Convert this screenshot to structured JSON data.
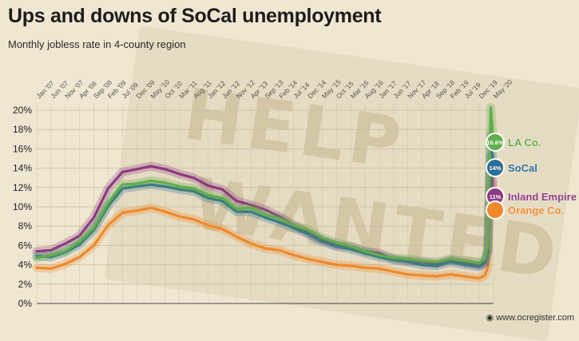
{
  "header": {
    "title": "Ups and downs of SoCal unemployment",
    "subtitle": "Monthly jobless rate in 4-county region"
  },
  "footer": {
    "credit": "www.ocregister.com"
  },
  "background": {
    "sign_top": "HELP",
    "sign_bottom": "WANTED"
  },
  "chart_data": {
    "type": "line",
    "title": "Ups and downs of SoCal unemployment",
    "subtitle": "Monthly jobless rate in 4-county region",
    "x_start": "2007-01",
    "x_end": "2020-05",
    "x_ticks": [
      "Jan '07",
      "Jun '07",
      "Nov '07",
      "Apr '08",
      "Sep '08",
      "Feb '09",
      "Jul '09",
      "Dec '09",
      "May '10",
      "Oct '10",
      "Mar '11",
      "Aug '11",
      "Jan '12",
      "Jun '12",
      "Nov '12",
      "Apr '13",
      "Sep '13",
      "Feb '14",
      "Jul '14",
      "Dec '14",
      "May '15",
      "Oct '15",
      "Mar '16",
      "Aug '16",
      "Jan '17",
      "Jun '17",
      "Nov '17",
      "Apr '18",
      "Sep '18",
      "Feb '19",
      "Jul '19",
      "Dec '19",
      "May '20"
    ],
    "y_ticks": [
      "0%",
      "2%",
      "4%",
      "6%",
      "8%",
      "10%",
      "12%",
      "14%",
      "16%",
      "18%",
      "20%"
    ],
    "ylim": [
      0,
      20
    ],
    "grid": true,
    "series": [
      {
        "name": "LA Co.",
        "color": "#62ad4c",
        "end_label": "16.6%",
        "points": [
          [
            "2007-01",
            4.7
          ],
          [
            "2007-06",
            5.0
          ],
          [
            "2007-11",
            5.4
          ],
          [
            "2008-04",
            6.4
          ],
          [
            "2008-09",
            7.8
          ],
          [
            "2009-02",
            10.4
          ],
          [
            "2009-07",
            12.3
          ],
          [
            "2009-12",
            12.4
          ],
          [
            "2010-05",
            12.7
          ],
          [
            "2010-10",
            12.5
          ],
          [
            "2011-03",
            12.1
          ],
          [
            "2011-08",
            11.9
          ],
          [
            "2012-01",
            11.2
          ],
          [
            "2012-06",
            10.9
          ],
          [
            "2012-11",
            9.8
          ],
          [
            "2013-04",
            9.9
          ],
          [
            "2013-09",
            9.2
          ],
          [
            "2014-02",
            8.8
          ],
          [
            "2014-07",
            8.1
          ],
          [
            "2014-12",
            7.6
          ],
          [
            "2015-05",
            6.8
          ],
          [
            "2015-10",
            6.3
          ],
          [
            "2016-03",
            5.9
          ],
          [
            "2016-08",
            5.4
          ],
          [
            "2017-01",
            5.0
          ],
          [
            "2017-06",
            4.7
          ],
          [
            "2017-11",
            4.6
          ],
          [
            "2018-04",
            4.4
          ],
          [
            "2018-09",
            4.3
          ],
          [
            "2019-02",
            4.6
          ],
          [
            "2019-07",
            4.4
          ],
          [
            "2019-12",
            4.2
          ],
          [
            "2020-02",
            4.6
          ],
          [
            "2020-03",
            6.0
          ],
          [
            "2020-04",
            20.3
          ],
          [
            "2020-05",
            16.6
          ]
        ]
      },
      {
        "name": "SoCal",
        "color": "#2d6e94",
        "end_label": "14%",
        "points": [
          [
            "2007-01",
            4.9
          ],
          [
            "2007-06",
            4.8
          ],
          [
            "2007-11",
            5.3
          ],
          [
            "2008-04",
            6.1
          ],
          [
            "2008-09",
            7.6
          ],
          [
            "2009-02",
            10.1
          ],
          [
            "2009-07",
            11.9
          ],
          [
            "2009-12",
            12.1
          ],
          [
            "2010-05",
            12.3
          ],
          [
            "2010-10",
            12.1
          ],
          [
            "2011-03",
            11.8
          ],
          [
            "2011-08",
            11.6
          ],
          [
            "2012-01",
            10.9
          ],
          [
            "2012-06",
            10.6
          ],
          [
            "2012-11",
            9.5
          ],
          [
            "2013-04",
            9.5
          ],
          [
            "2013-09",
            8.9
          ],
          [
            "2014-02",
            8.4
          ],
          [
            "2014-07",
            7.8
          ],
          [
            "2014-12",
            7.2
          ],
          [
            "2015-05",
            6.4
          ],
          [
            "2015-10",
            5.9
          ],
          [
            "2016-03",
            5.6
          ],
          [
            "2016-08",
            5.2
          ],
          [
            "2017-01",
            4.8
          ],
          [
            "2017-06",
            4.5
          ],
          [
            "2017-11",
            4.3
          ],
          [
            "2018-04",
            4.0
          ],
          [
            "2018-09",
            3.9
          ],
          [
            "2019-02",
            4.3
          ],
          [
            "2019-07",
            4.0
          ],
          [
            "2019-12",
            3.8
          ],
          [
            "2020-02",
            4.2
          ],
          [
            "2020-03",
            5.4
          ],
          [
            "2020-04",
            17.4
          ],
          [
            "2020-05",
            14.0
          ]
        ]
      },
      {
        "name": "Inland Empire",
        "color": "#8e3a82",
        "end_label": "11%",
        "points": [
          [
            "2007-01",
            5.4
          ],
          [
            "2007-06",
            5.5
          ],
          [
            "2007-11",
            6.2
          ],
          [
            "2008-04",
            7.0
          ],
          [
            "2008-09",
            8.9
          ],
          [
            "2009-02",
            11.9
          ],
          [
            "2009-07",
            13.6
          ],
          [
            "2009-12",
            13.9
          ],
          [
            "2010-05",
            14.2
          ],
          [
            "2010-10",
            13.9
          ],
          [
            "2011-03",
            13.4
          ],
          [
            "2011-08",
            13.0
          ],
          [
            "2012-01",
            12.2
          ],
          [
            "2012-06",
            11.8
          ],
          [
            "2012-11",
            10.6
          ],
          [
            "2013-04",
            10.2
          ],
          [
            "2013-09",
            9.7
          ],
          [
            "2014-02",
            9.0
          ],
          [
            "2014-07",
            8.1
          ],
          [
            "2014-12",
            7.3
          ],
          [
            "2015-05",
            6.6
          ],
          [
            "2015-10",
            6.0
          ],
          [
            "2016-03",
            5.9
          ],
          [
            "2016-08",
            5.4
          ],
          [
            "2017-01",
            5.2
          ],
          [
            "2017-06",
            4.6
          ],
          [
            "2017-11",
            4.4
          ],
          [
            "2018-04",
            4.3
          ],
          [
            "2018-09",
            4.1
          ],
          [
            "2019-02",
            4.5
          ],
          [
            "2019-07",
            4.2
          ],
          [
            "2019-12",
            3.9
          ],
          [
            "2020-02",
            4.3
          ],
          [
            "2020-03",
            5.5
          ],
          [
            "2020-04",
            15.2
          ],
          [
            "2020-05",
            11.0
          ]
        ]
      },
      {
        "name": "Orange Co.",
        "color": "#ef8a2b",
        "end_label": "",
        "points": [
          [
            "2007-01",
            3.7
          ],
          [
            "2007-06",
            3.6
          ],
          [
            "2007-11",
            4.1
          ],
          [
            "2008-04",
            4.8
          ],
          [
            "2008-09",
            6.0
          ],
          [
            "2009-02",
            8.1
          ],
          [
            "2009-07",
            9.4
          ],
          [
            "2009-12",
            9.6
          ],
          [
            "2010-05",
            9.9
          ],
          [
            "2010-10",
            9.5
          ],
          [
            "2011-03",
            9.0
          ],
          [
            "2011-08",
            8.7
          ],
          [
            "2012-01",
            8.1
          ],
          [
            "2012-06",
            7.7
          ],
          [
            "2012-11",
            6.9
          ],
          [
            "2013-04",
            6.2
          ],
          [
            "2013-09",
            5.7
          ],
          [
            "2014-02",
            5.5
          ],
          [
            "2014-07",
            5.0
          ],
          [
            "2014-12",
            4.6
          ],
          [
            "2015-05",
            4.3
          ],
          [
            "2015-10",
            4.0
          ],
          [
            "2016-03",
            3.9
          ],
          [
            "2016-08",
            3.7
          ],
          [
            "2017-01",
            3.6
          ],
          [
            "2017-06",
            3.3
          ],
          [
            "2017-11",
            3.0
          ],
          [
            "2018-04",
            2.9
          ],
          [
            "2018-09",
            2.8
          ],
          [
            "2019-02",
            3.0
          ],
          [
            "2019-07",
            2.8
          ],
          [
            "2019-12",
            2.6
          ],
          [
            "2020-02",
            2.9
          ],
          [
            "2020-03",
            3.8
          ],
          [
            "2020-04",
            14.5
          ],
          [
            "2020-05",
            9.8
          ]
        ]
      }
    ]
  }
}
